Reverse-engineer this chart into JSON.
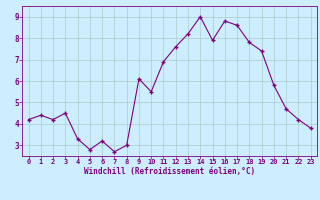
{
  "x": [
    0,
    1,
    2,
    3,
    4,
    5,
    6,
    7,
    8,
    9,
    10,
    11,
    12,
    13,
    14,
    15,
    16,
    17,
    18,
    19,
    20,
    21,
    22,
    23
  ],
  "y": [
    4.2,
    4.4,
    4.2,
    4.5,
    3.3,
    2.8,
    3.2,
    2.7,
    3.0,
    6.1,
    5.5,
    6.9,
    7.6,
    8.2,
    9.0,
    7.9,
    8.8,
    8.6,
    7.8,
    7.4,
    5.8,
    4.7,
    4.2,
    3.8
  ],
  "xlabel": "Windchill (Refroidissement éolien,°C)",
  "line_color": "#800080",
  "marker": "+",
  "marker_size": 3.5,
  "marker_lw": 1.0,
  "bg_color": "#cceeff",
  "grid_color": "#aacccc",
  "ylim": [
    2.5,
    9.5
  ],
  "xlim": [
    -0.5,
    23.5
  ],
  "yticks": [
    3,
    4,
    5,
    6,
    7,
    8,
    9
  ],
  "xticks": [
    0,
    1,
    2,
    3,
    4,
    5,
    6,
    7,
    8,
    9,
    10,
    11,
    12,
    13,
    14,
    15,
    16,
    17,
    18,
    19,
    20,
    21,
    22,
    23
  ],
  "tick_color": "#800080",
  "label_color": "#800080",
  "tick_fontsize": 5.0,
  "xlabel_fontsize": 5.5,
  "linewidth": 0.8
}
